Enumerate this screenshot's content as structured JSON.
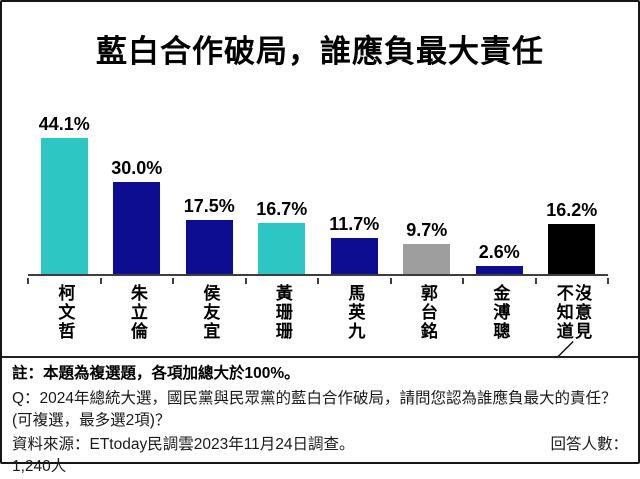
{
  "chart_data": {
    "type": "bar",
    "title": "藍白合作破局，誰應負最大責任",
    "categories": [
      "柯文哲",
      "朱立倫",
      "侯友宜",
      "黃珊珊",
      "馬英九",
      "郭台銘",
      "金溥聰",
      "不知道／沒意見"
    ],
    "values": [
      44.1,
      30.0,
      17.5,
      16.7,
      11.7,
      9.7,
      2.6,
      16.2
    ],
    "value_labels": [
      "44.1%",
      "30.0%",
      "17.5%",
      "16.7%",
      "11.7%",
      "9.7%",
      "2.6%",
      "16.2%"
    ],
    "bar_colors": [
      "#2EC6C3",
      "#0D0D92",
      "#0D0D92",
      "#2EC6C3",
      "#0D0D92",
      "#9E9E9E",
      "#0D0D92",
      "#000000"
    ],
    "xlabel": "",
    "ylabel": "",
    "ylim": [
      0,
      48
    ],
    "grid": false,
    "legend": false
  },
  "notes": {
    "note": "註：本題為複選題，各項加總大於100%。",
    "question": "Q：2024年總統大選，國民黨與民眾黨的藍白合作破局，請問您認為誰應負最大的責任？(可複選，最多選2項)？",
    "source": "資料來源：ETtoday民調雲2023年11月24日調查。",
    "respondents_label": "回答人數：",
    "respondents_count": "1,240人"
  },
  "colors": {
    "teal": "#2EC6C3",
    "navy": "#0D0D92",
    "gray": "#9E9E9E",
    "black": "#000000",
    "axis": "#3d3d3d"
  }
}
